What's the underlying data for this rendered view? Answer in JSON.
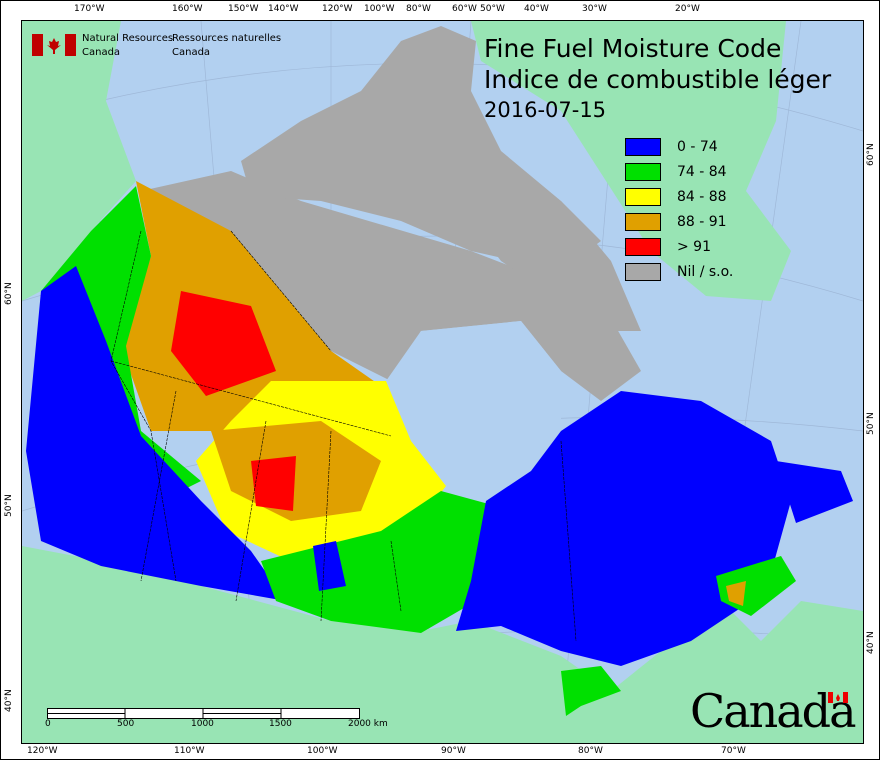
{
  "header": {
    "org_en": [
      "Natural Resources",
      "Canada"
    ],
    "org_fr": [
      "Ressources naturelles",
      "Canada"
    ],
    "title_en": "Fine Fuel Moisture Code",
    "title_fr": "Indice de combustible léger",
    "date": "2016-07-15"
  },
  "legend": [
    {
      "label": "0 - 74",
      "color": "#0000ff"
    },
    {
      "label": "74 - 84",
      "color": "#00e000"
    },
    {
      "label": "84 - 88",
      "color": "#ffff00"
    },
    {
      "label": "88 - 91",
      "color": "#e0a000"
    },
    {
      "label": "> 91",
      "color": "#ff0000"
    },
    {
      "label": "Nil / s.o.",
      "color": "#a8a8a8"
    }
  ],
  "colors": {
    "ocean": "#b2d0f0",
    "foreign_land": "#98e4b4"
  },
  "axes": {
    "top": [
      "170°W",
      "160°W",
      "150°W",
      "140°W",
      "120°W",
      "100°W",
      "80°W",
      "60°W",
      "50°W",
      "40°W",
      "30°W",
      "20°W"
    ],
    "bottom": [
      "120°W",
      "110°W",
      "100°W",
      "90°W",
      "80°W",
      "70°W"
    ],
    "left": [
      "60°N",
      "50°N",
      "40°N"
    ],
    "right": [
      "60°N",
      "50°N",
      "40°N"
    ]
  },
  "scale_bar": {
    "labels": [
      "0",
      "500",
      "1000",
      "1500",
      "2000 km"
    ]
  },
  "wordmark": "Canada"
}
